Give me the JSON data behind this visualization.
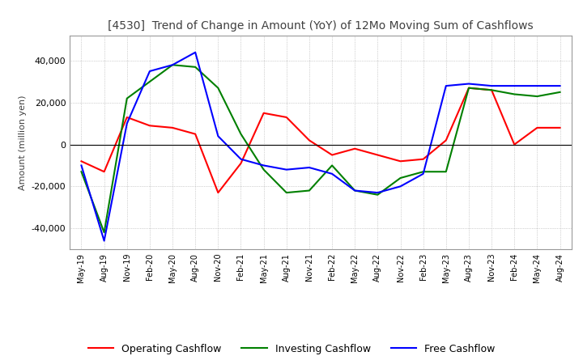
{
  "title": "[4530]  Trend of Change in Amount (YoY) of 12Mo Moving Sum of Cashflows",
  "ylabel": "Amount (million yen)",
  "ylim": [
    -50000,
    52000
  ],
  "yticks": [
    -40000,
    -20000,
    0,
    20000,
    40000
  ],
  "x_labels": [
    "May-19",
    "Aug-19",
    "Nov-19",
    "Feb-20",
    "May-20",
    "Aug-20",
    "Nov-20",
    "Feb-21",
    "May-21",
    "Aug-21",
    "Nov-21",
    "Feb-22",
    "May-22",
    "Aug-22",
    "Nov-22",
    "Feb-23",
    "May-23",
    "Aug-23",
    "Nov-23",
    "Feb-24",
    "May-24",
    "Aug-24"
  ],
  "operating": [
    -8000,
    -13000,
    13000,
    9000,
    8000,
    5000,
    -23000,
    -9000,
    15000,
    13000,
    2000,
    -5000,
    -2000,
    -5000,
    -8000,
    -7000,
    2000,
    27000,
    26000,
    0,
    8000,
    8000
  ],
  "investing": [
    -13000,
    -42000,
    22000,
    30000,
    38000,
    37000,
    27000,
    5000,
    -12000,
    -23000,
    -22000,
    -10000,
    -22000,
    -24000,
    -16000,
    -13000,
    -13000,
    27000,
    26000,
    24000,
    23000,
    25000
  ],
  "free": [
    -10000,
    -46000,
    10000,
    35000,
    38000,
    44000,
    4000,
    -7000,
    -10000,
    -12000,
    -11000,
    -14000,
    -22000,
    -23000,
    -20000,
    -14000,
    28000,
    29000,
    28000,
    28000,
    28000,
    28000
  ],
  "line_colors": {
    "operating": "#ff0000",
    "investing": "#008000",
    "free": "#0000ff"
  },
  "background_color": "#ffffff",
  "grid_color": "#aaaaaa",
  "title_color": "#404040"
}
